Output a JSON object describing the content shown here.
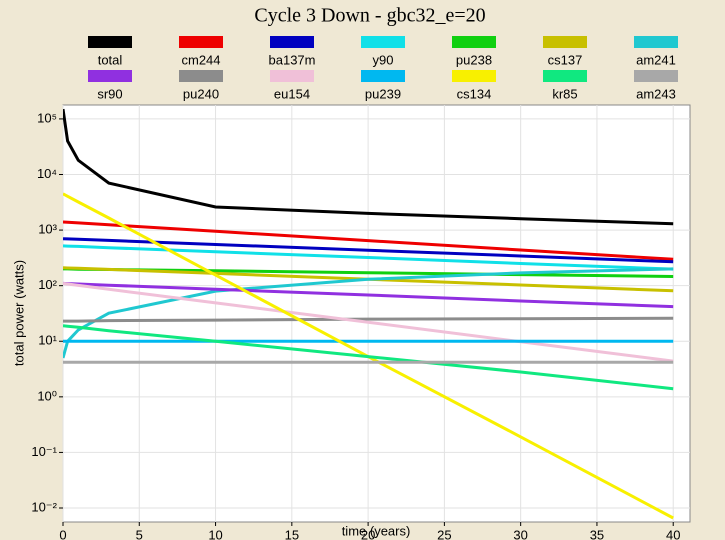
{
  "chart_data": {
    "type": "line",
    "title": "Cycle 3 Down - gbc32_e=20",
    "xlabel": "time (years)",
    "ylabel": "total power (watts)",
    "y_scale": "log",
    "grid": true,
    "x": [
      0,
      0.3,
      1,
      3,
      10,
      20,
      30,
      40
    ],
    "xlim": [
      0,
      41.1
    ],
    "xticks": [
      0,
      5,
      10,
      15,
      20,
      25,
      30,
      35,
      40
    ],
    "ylim": [
      0.0056,
      178000
    ],
    "yticks": [
      {
        "value": 100000,
        "label": "10⁵"
      },
      {
        "value": 10000,
        "label": "10⁴"
      },
      {
        "value": 1000,
        "label": "10³"
      },
      {
        "value": 100,
        "label": "10²"
      },
      {
        "value": 10,
        "label": "10¹"
      },
      {
        "value": 1,
        "label": "10⁰"
      },
      {
        "value": 0.1,
        "label": "10⁻¹"
      },
      {
        "value": 0.01,
        "label": "10⁻²"
      }
    ],
    "series": [
      {
        "name": "total",
        "color": "#000000",
        "values": [
          150000,
          40000,
          18000,
          7000,
          2600,
          2000,
          1600,
          1300
        ]
      },
      {
        "name": "cm244",
        "color": "#ee0000",
        "values": [
          1400,
          1384,
          1348,
          1247,
          951,
          646,
          439,
          298
        ]
      },
      {
        "name": "ba137m",
        "color": "#0000c0",
        "values": [
          700,
          695,
          684,
          652,
          551,
          434,
          342,
          269
        ]
      },
      {
        "name": "y90",
        "color": "#10e0e8",
        "values": [
          520,
          516,
          508,
          483,
          407,
          321,
          251,
          199
        ]
      },
      {
        "name": "pu238",
        "color": "#10d010",
        "values": [
          200,
          200,
          198,
          195,
          185,
          171,
          158,
          146
        ]
      },
      {
        "name": "cs137",
        "color": "#c8c000",
        "values": [
          210,
          208,
          205,
          196,
          166,
          131,
          103,
          81
        ]
      },
      {
        "name": "am241",
        "color": "#20c8d0",
        "values": [
          5,
          10,
          16,
          32,
          80,
          130,
          170,
          200
        ]
      },
      {
        "name": "sr90",
        "color": "#9030e0",
        "values": [
          110,
          109,
          107,
          102,
          86,
          68,
          53,
          42
        ]
      },
      {
        "name": "pu240",
        "color": "#8c8c8c",
        "values": [
          23,
          23,
          23,
          23.5,
          24,
          25,
          25.5,
          26
        ]
      },
      {
        "name": "eu154",
        "color": "#f0c0d8",
        "values": [
          110,
          107,
          101,
          86,
          49,
          22,
          9.8,
          4.4
        ]
      },
      {
        "name": "pu239",
        "color": "#00b8f0",
        "values": [
          10,
          10,
          10,
          10,
          10,
          10,
          10,
          10
        ]
      },
      {
        "name": "cs134",
        "color": "#f8f000",
        "values": [
          4500,
          4050,
          3200,
          1650,
          155,
          5.3,
          0.19,
          0.0066
        ]
      },
      {
        "name": "kr85",
        "color": "#10e880",
        "values": [
          19,
          18.6,
          17.8,
          15.5,
          10,
          5.3,
          2.8,
          1.4
        ]
      },
      {
        "name": "am243",
        "color": "#a8a8a8",
        "values": [
          4.2,
          4.2,
          4.2,
          4.2,
          4.2,
          4.2,
          4.2,
          4.2
        ]
      }
    ]
  }
}
